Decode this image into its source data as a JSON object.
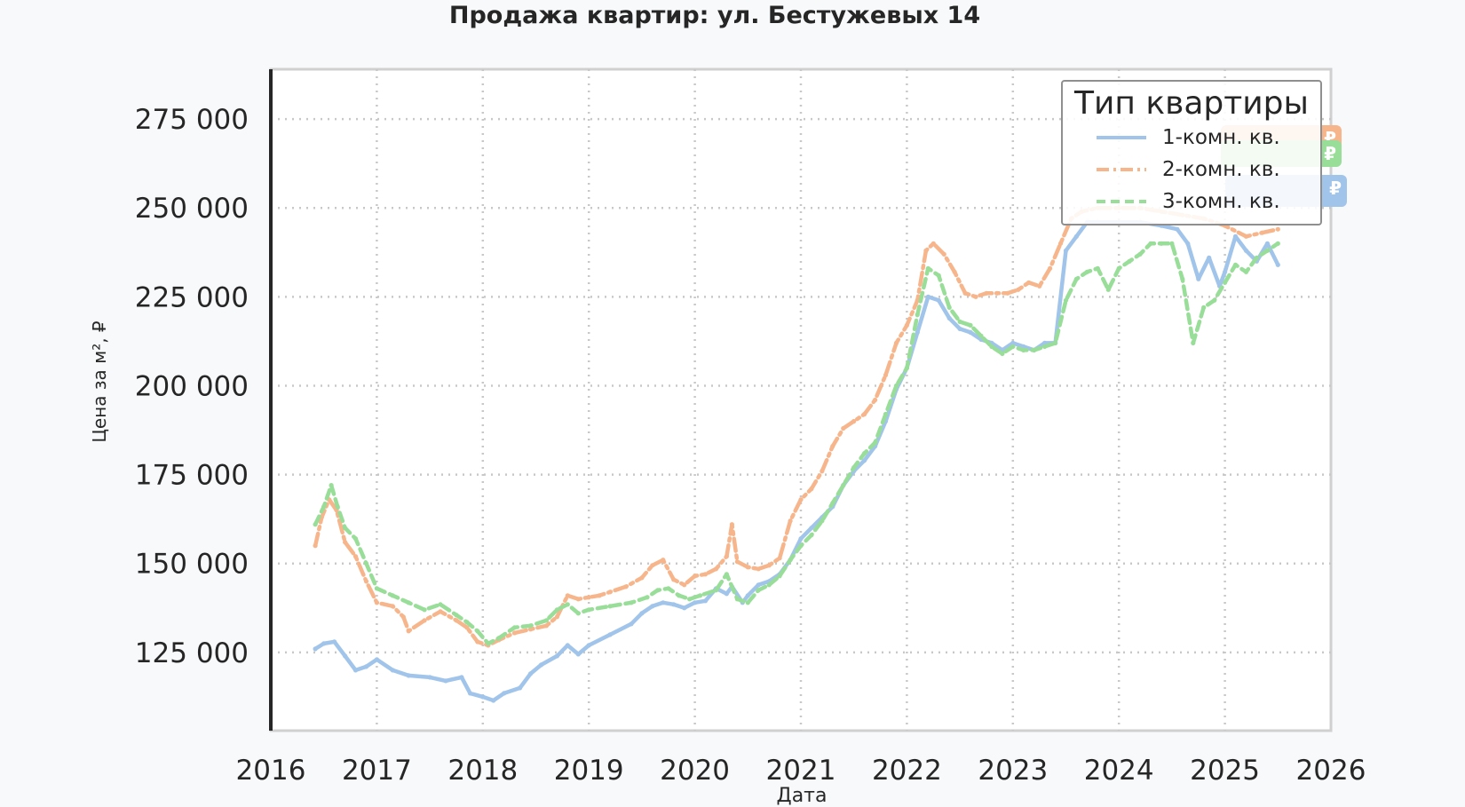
{
  "chart_data": {
    "type": "line",
    "title": "Продажа квартир: ул. Бестужевых 14",
    "xlabel": "Дата",
    "ylabel": "Цена за м², ₽",
    "xlim": [
      2016,
      2026
    ],
    "ylim": [
      103000,
      289000
    ],
    "grid": true,
    "legend_title": "Тип квартиры",
    "legend_position": "top-right",
    "x_ticks": [
      "2016",
      "2017",
      "2018",
      "2019",
      "2020",
      "2021",
      "2022",
      "2023",
      "2024",
      "2025",
      "2026"
    ],
    "y_ticks": [
      "125 000",
      "150 000",
      "175 000",
      "200 000",
      "225 000",
      "250 000",
      "275 000"
    ],
    "series": [
      {
        "name": "1-комн. кв.",
        "color": "#a1c4ea",
        "end_label": "₽",
        "points": [
          [
            2016.42,
            126000
          ],
          [
            2016.5,
            127500
          ],
          [
            2016.6,
            128000
          ],
          [
            2016.7,
            124000
          ],
          [
            2016.8,
            120000
          ],
          [
            2016.9,
            121000
          ],
          [
            2017.0,
            123000
          ],
          [
            2017.15,
            120000
          ],
          [
            2017.3,
            118500
          ],
          [
            2017.5,
            118000
          ],
          [
            2017.65,
            117000
          ],
          [
            2017.8,
            118000
          ],
          [
            2017.88,
            113500
          ],
          [
            2018.0,
            112500
          ],
          [
            2018.1,
            111500
          ],
          [
            2018.2,
            113500
          ],
          [
            2018.35,
            115000
          ],
          [
            2018.45,
            119000
          ],
          [
            2018.55,
            121500
          ],
          [
            2018.7,
            124000
          ],
          [
            2018.8,
            127000
          ],
          [
            2018.9,
            124500
          ],
          [
            2019.0,
            127000
          ],
          [
            2019.2,
            130000
          ],
          [
            2019.4,
            133000
          ],
          [
            2019.5,
            136000
          ],
          [
            2019.6,
            138000
          ],
          [
            2019.7,
            139000
          ],
          [
            2019.8,
            138500
          ],
          [
            2019.9,
            137500
          ],
          [
            2020.0,
            139000
          ],
          [
            2020.1,
            139500
          ],
          [
            2020.2,
            143000
          ],
          [
            2020.3,
            141500
          ],
          [
            2020.35,
            143500
          ],
          [
            2020.45,
            139000
          ],
          [
            2020.5,
            141000
          ],
          [
            2020.6,
            144000
          ],
          [
            2020.7,
            145000
          ],
          [
            2020.8,
            147000
          ],
          [
            2020.9,
            151000
          ],
          [
            2021.0,
            157000
          ],
          [
            2021.1,
            160000
          ],
          [
            2021.2,
            163000
          ],
          [
            2021.3,
            166000
          ],
          [
            2021.4,
            172000
          ],
          [
            2021.5,
            176000
          ],
          [
            2021.6,
            179000
          ],
          [
            2021.7,
            183000
          ],
          [
            2021.8,
            190000
          ],
          [
            2021.9,
            199000
          ],
          [
            2022.0,
            205000
          ],
          [
            2022.1,
            215000
          ],
          [
            2022.2,
            225000
          ],
          [
            2022.3,
            224000
          ],
          [
            2022.4,
            219000
          ],
          [
            2022.5,
            216000
          ],
          [
            2022.6,
            215000
          ],
          [
            2022.7,
            213000
          ],
          [
            2022.8,
            212000
          ],
          [
            2022.9,
            210000
          ],
          [
            2023.0,
            212000
          ],
          [
            2023.1,
            211000
          ],
          [
            2023.2,
            210000
          ],
          [
            2023.3,
            212000
          ],
          [
            2023.4,
            212000
          ],
          [
            2023.5,
            238000
          ],
          [
            2023.6,
            242000
          ],
          [
            2023.7,
            246000
          ],
          [
            2023.8,
            246000
          ],
          [
            2023.9,
            246000
          ],
          [
            2024.0,
            246000
          ],
          [
            2024.2,
            246000
          ],
          [
            2024.4,
            245000
          ],
          [
            2024.55,
            244000
          ],
          [
            2024.65,
            240000
          ],
          [
            2024.75,
            230000
          ],
          [
            2024.85,
            236000
          ],
          [
            2024.95,
            228000
          ],
          [
            2025.0,
            232000
          ],
          [
            2025.1,
            242000
          ],
          [
            2025.2,
            238000
          ],
          [
            2025.3,
            235000
          ],
          [
            2025.4,
            240000
          ],
          [
            2025.5,
            234000
          ]
        ]
      },
      {
        "name": "2-комн. кв.",
        "color": "#f7b58c",
        "end_label": "₽",
        "points": [
          [
            2016.42,
            155000
          ],
          [
            2016.48,
            163000
          ],
          [
            2016.55,
            168000
          ],
          [
            2016.62,
            165000
          ],
          [
            2016.7,
            156000
          ],
          [
            2016.8,
            152000
          ],
          [
            2016.9,
            145000
          ],
          [
            2017.0,
            139000
          ],
          [
            2017.15,
            138000
          ],
          [
            2017.25,
            135000
          ],
          [
            2017.3,
            131000
          ],
          [
            2017.45,
            134000
          ],
          [
            2017.6,
            136500
          ],
          [
            2017.75,
            134000
          ],
          [
            2017.85,
            132000
          ],
          [
            2017.95,
            128000
          ],
          [
            2018.05,
            127000
          ],
          [
            2018.15,
            128500
          ],
          [
            2018.3,
            130500
          ],
          [
            2018.45,
            131500
          ],
          [
            2018.6,
            132500
          ],
          [
            2018.7,
            135000
          ],
          [
            2018.8,
            141000
          ],
          [
            2018.9,
            140000
          ],
          [
            2019.0,
            140500
          ],
          [
            2019.1,
            141000
          ],
          [
            2019.2,
            142000
          ],
          [
            2019.35,
            143500
          ],
          [
            2019.5,
            146000
          ],
          [
            2019.6,
            149500
          ],
          [
            2019.7,
            151000
          ],
          [
            2019.8,
            145500
          ],
          [
            2019.9,
            144000
          ],
          [
            2020.0,
            146500
          ],
          [
            2020.1,
            147000
          ],
          [
            2020.2,
            148500
          ],
          [
            2020.3,
            152000
          ],
          [
            2020.35,
            161000
          ],
          [
            2020.4,
            150500
          ],
          [
            2020.5,
            149000
          ],
          [
            2020.6,
            148500
          ],
          [
            2020.7,
            149500
          ],
          [
            2020.8,
            151500
          ],
          [
            2020.9,
            162000
          ],
          [
            2021.0,
            168000
          ],
          [
            2021.1,
            171000
          ],
          [
            2021.2,
            176000
          ],
          [
            2021.3,
            183000
          ],
          [
            2021.4,
            188000
          ],
          [
            2021.5,
            190000
          ],
          [
            2021.6,
            192000
          ],
          [
            2021.7,
            196000
          ],
          [
            2021.8,
            203000
          ],
          [
            2021.9,
            212000
          ],
          [
            2022.0,
            217000
          ],
          [
            2022.1,
            224000
          ],
          [
            2022.18,
            238000
          ],
          [
            2022.25,
            240000
          ],
          [
            2022.35,
            237000
          ],
          [
            2022.45,
            232000
          ],
          [
            2022.55,
            226000
          ],
          [
            2022.65,
            225000
          ],
          [
            2022.75,
            226000
          ],
          [
            2022.85,
            226000
          ],
          [
            2022.95,
            226000
          ],
          [
            2023.05,
            227000
          ],
          [
            2023.15,
            229000
          ],
          [
            2023.25,
            228000
          ],
          [
            2023.35,
            233000
          ],
          [
            2023.45,
            240000
          ],
          [
            2023.55,
            247000
          ],
          [
            2023.65,
            249000
          ],
          [
            2023.8,
            250000
          ],
          [
            2024.0,
            250000
          ],
          [
            2024.2,
            250000
          ],
          [
            2024.4,
            249000
          ],
          [
            2024.6,
            248000
          ],
          [
            2024.8,
            247000
          ],
          [
            2025.0,
            245000
          ],
          [
            2025.2,
            242000
          ],
          [
            2025.35,
            243000
          ],
          [
            2025.5,
            244000
          ]
        ]
      },
      {
        "name": "3-комн. кв.",
        "color": "#98dd98",
        "end_label": "₽",
        "points": [
          [
            2016.42,
            161000
          ],
          [
            2016.5,
            166000
          ],
          [
            2016.57,
            172000
          ],
          [
            2016.63,
            166000
          ],
          [
            2016.7,
            160000
          ],
          [
            2016.8,
            157000
          ],
          [
            2016.9,
            150000
          ],
          [
            2017.0,
            143000
          ],
          [
            2017.15,
            141000
          ],
          [
            2017.3,
            139000
          ],
          [
            2017.45,
            137000
          ],
          [
            2017.6,
            138500
          ],
          [
            2017.75,
            135500
          ],
          [
            2017.85,
            133500
          ],
          [
            2017.95,
            131000
          ],
          [
            2018.05,
            127500
          ],
          [
            2018.15,
            129000
          ],
          [
            2018.3,
            132000
          ],
          [
            2018.45,
            132500
          ],
          [
            2018.6,
            134000
          ],
          [
            2018.7,
            137000
          ],
          [
            2018.8,
            138500
          ],
          [
            2018.9,
            136000
          ],
          [
            2019.0,
            137000
          ],
          [
            2019.2,
            138000
          ],
          [
            2019.4,
            139000
          ],
          [
            2019.55,
            140500
          ],
          [
            2019.65,
            142500
          ],
          [
            2019.75,
            143000
          ],
          [
            2019.85,
            141000
          ],
          [
            2019.95,
            140000
          ],
          [
            2020.05,
            141000
          ],
          [
            2020.2,
            142500
          ],
          [
            2020.3,
            147000
          ],
          [
            2020.4,
            140000
          ],
          [
            2020.5,
            139000
          ],
          [
            2020.6,
            142500
          ],
          [
            2020.7,
            144000
          ],
          [
            2020.8,
            146500
          ],
          [
            2020.9,
            151000
          ],
          [
            2021.0,
            155000
          ],
          [
            2021.1,
            158000
          ],
          [
            2021.2,
            162000
          ],
          [
            2021.3,
            167000
          ],
          [
            2021.4,
            172000
          ],
          [
            2021.5,
            177000
          ],
          [
            2021.6,
            181000
          ],
          [
            2021.7,
            184000
          ],
          [
            2021.8,
            192000
          ],
          [
            2021.9,
            200000
          ],
          [
            2022.0,
            205000
          ],
          [
            2022.1,
            220000
          ],
          [
            2022.2,
            233000
          ],
          [
            2022.3,
            231000
          ],
          [
            2022.4,
            222000
          ],
          [
            2022.5,
            218000
          ],
          [
            2022.6,
            217000
          ],
          [
            2022.7,
            214000
          ],
          [
            2022.8,
            211000
          ],
          [
            2022.9,
            209000
          ],
          [
            2023.0,
            211000
          ],
          [
            2023.1,
            210000
          ],
          [
            2023.2,
            210000
          ],
          [
            2023.3,
            211000
          ],
          [
            2023.4,
            212000
          ],
          [
            2023.5,
            224000
          ],
          [
            2023.6,
            230000
          ],
          [
            2023.7,
            232000
          ],
          [
            2023.8,
            233000
          ],
          [
            2023.9,
            227000
          ],
          [
            2024.0,
            233000
          ],
          [
            2024.1,
            235000
          ],
          [
            2024.2,
            237000
          ],
          [
            2024.3,
            240000
          ],
          [
            2024.4,
            240000
          ],
          [
            2024.5,
            240000
          ],
          [
            2024.6,
            230000
          ],
          [
            2024.7,
            212000
          ],
          [
            2024.8,
            222000
          ],
          [
            2024.9,
            224000
          ],
          [
            2025.0,
            229000
          ],
          [
            2025.1,
            234000
          ],
          [
            2025.2,
            232000
          ],
          [
            2025.3,
            236000
          ],
          [
            2025.4,
            238000
          ],
          [
            2025.5,
            240000
          ]
        ]
      }
    ]
  }
}
